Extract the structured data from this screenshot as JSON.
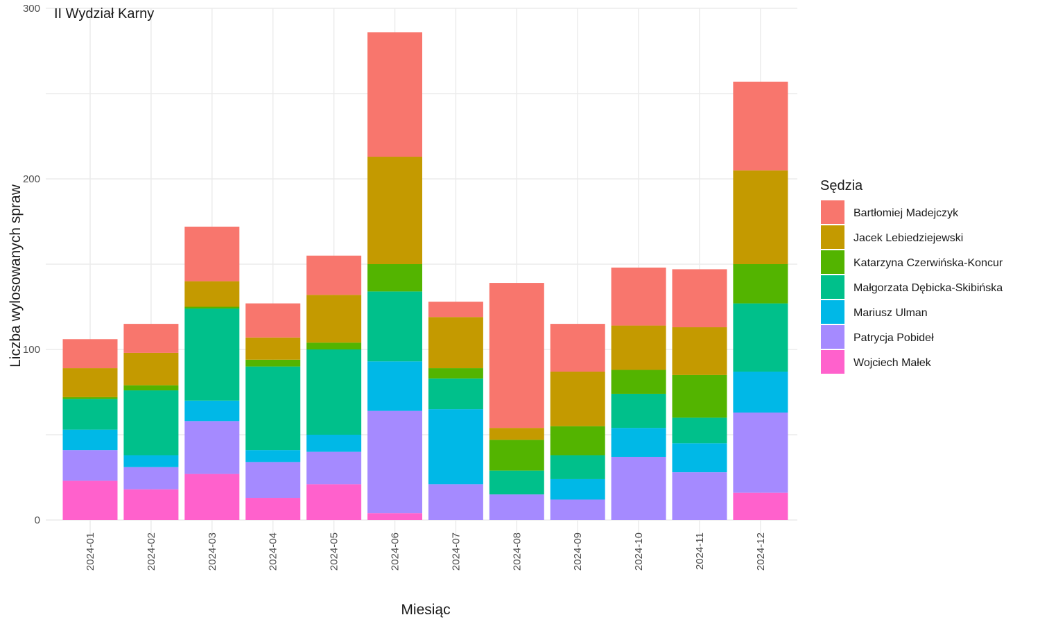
{
  "chart_data": {
    "type": "bar",
    "stacked": true,
    "title": "II Wydział Karny",
    "xlabel": "Miesiąc",
    "ylabel": "Liczba wylosowanych spraw",
    "ylim": [
      0,
      300
    ],
    "yticks": [
      0,
      100,
      200,
      300
    ],
    "grid": true,
    "legend_title": "Sędzia",
    "legend_position": "right",
    "categories": [
      "2024-01",
      "2024-02",
      "2024-03",
      "2024-04",
      "2024-05",
      "2024-06",
      "2024-07",
      "2024-08",
      "2024-09",
      "2024-10",
      "2024-11",
      "2024-12"
    ],
    "series": [
      {
        "name": "Wojciech Małek",
        "color": "#FF61CC",
        "values": [
          23,
          18,
          27,
          13,
          21,
          4,
          0,
          0,
          0,
          0,
          0,
          16
        ]
      },
      {
        "name": "Patrycja Pobideł",
        "color": "#A58AFF",
        "values": [
          18,
          13,
          31,
          21,
          19,
          60,
          21,
          15,
          12,
          37,
          28,
          47
        ]
      },
      {
        "name": "Mariusz Ulman",
        "color": "#00B8E7",
        "values": [
          12,
          7,
          12,
          7,
          10,
          29,
          44,
          0,
          12,
          17,
          17,
          24
        ]
      },
      {
        "name": "Małgorzata Dębicka-Skibińska",
        "color": "#00C08B",
        "values": [
          18,
          38,
          54,
          49,
          50,
          41,
          18,
          14,
          14,
          20,
          15,
          40
        ]
      },
      {
        "name": "Katarzyna Czerwińska-Koncur",
        "color": "#53B400",
        "values": [
          1,
          3,
          1,
          4,
          4,
          16,
          6,
          18,
          17,
          14,
          25,
          23
        ]
      },
      {
        "name": "Jacek Lebiedziejewski",
        "color": "#C49A00",
        "values": [
          17,
          19,
          15,
          13,
          28,
          63,
          30,
          7,
          32,
          26,
          28,
          55
        ]
      },
      {
        "name": "Bartłomiej Madejczyk",
        "color": "#F8766D",
        "values": [
          17,
          17,
          32,
          20,
          23,
          73,
          9,
          85,
          28,
          34,
          34,
          52
        ]
      }
    ]
  }
}
